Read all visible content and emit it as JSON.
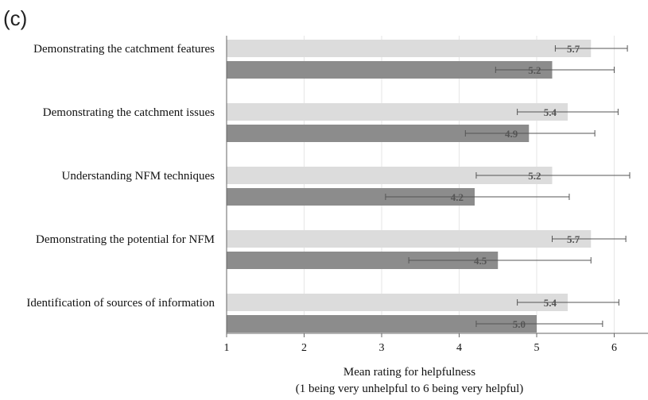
{
  "panel_label": "(c)",
  "chart_data": {
    "type": "bar",
    "orientation": "horizontal",
    "categories": [
      "Demonstrating the catchment features",
      "Demonstrating the catchment issues",
      "Understanding NFM techniques",
      "Demonstrating the potential for NFM",
      "Identification of sources of information"
    ],
    "series": [
      {
        "color": "#dcdcdc",
        "values": [
          5.7,
          5.4,
          5.2,
          5.7,
          5.4
        ],
        "value_labels": [
          "5.7",
          "5.4",
          "5.2",
          "5.7",
          "5.4"
        ],
        "error_low": [
          5.24,
          4.75,
          4.22,
          5.2,
          4.75
        ],
        "error_high": [
          6.17,
          6.05,
          6.2,
          6.15,
          6.06
        ]
      },
      {
        "color": "#8c8c8c",
        "values": [
          5.2,
          4.9,
          4.2,
          4.5,
          5.0
        ],
        "value_labels": [
          "5.2",
          "4.9",
          "4.2",
          "4.5",
          "5.0"
        ],
        "error_low": [
          4.47,
          4.08,
          3.05,
          3.35,
          4.22
        ],
        "error_high": [
          6.0,
          5.75,
          5.42,
          5.7,
          5.85
        ]
      }
    ],
    "xlim": [
      1,
      6.4
    ],
    "xticks": [
      "1",
      "2",
      "3",
      "4",
      "5",
      "6"
    ],
    "xlabel": "Mean rating for helpfulness",
    "xlabel_sub": "(1 being very unhelpful to 6 being very helpful)",
    "grid": "vertical"
  }
}
